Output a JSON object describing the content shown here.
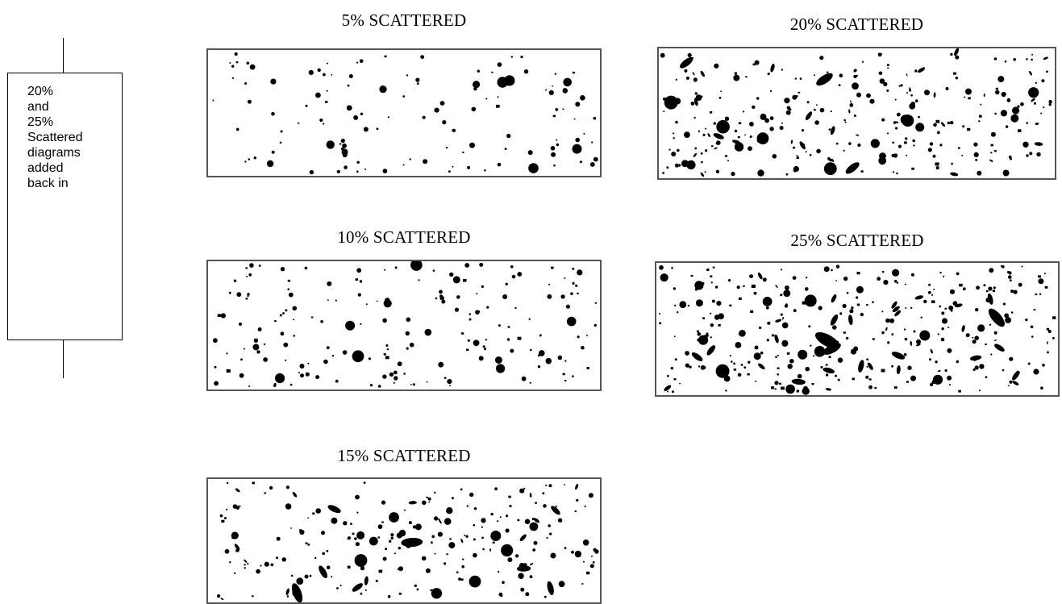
{
  "callout": {
    "text": "20%\nand\n25%\nScattered\ndiagrams\nadded\nback in"
  },
  "panels": [
    {
      "id": "p5",
      "title": "5% SCATTERED",
      "percent": 5,
      "color": "#000000"
    },
    {
      "id": "p10",
      "title": "10% SCATTERED",
      "percent": 10,
      "color": "#000000"
    },
    {
      "id": "p15",
      "title": "15% SCATTERED",
      "percent": 15,
      "color": "#000000"
    },
    {
      "id": "p20",
      "title": "20% SCATTERED",
      "percent": 20,
      "color": "#000000"
    },
    {
      "id": "p25",
      "title": "25% SCATTERED",
      "percent": 25,
      "color": "#000000"
    }
  ]
}
